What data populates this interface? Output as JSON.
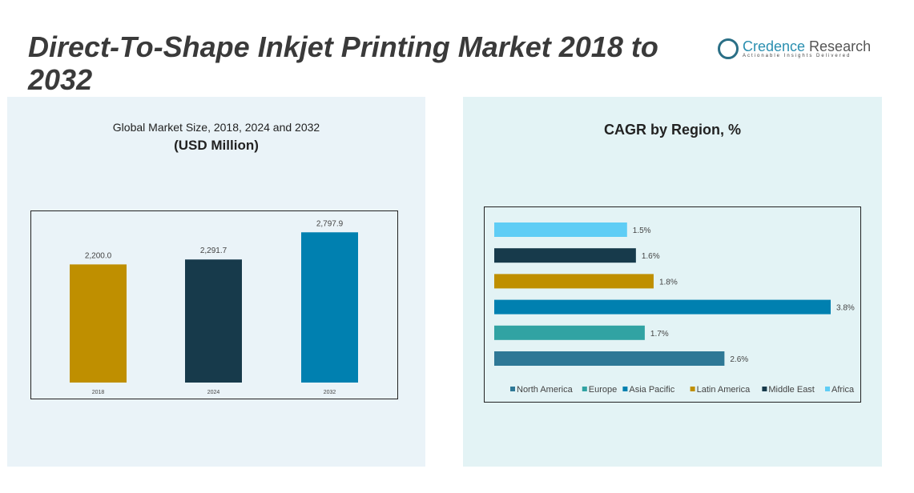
{
  "title": "Direct-To-Shape Inkjet Printing Market 2018 to 2032",
  "logo": {
    "name_a": "Credence",
    "name_b": " Research",
    "tagline": "Actionable Insights Delivered"
  },
  "chart_data": [
    {
      "type": "bar",
      "title": "Global Market Size, 2018, 2024 and 2032",
      "subtitle": "(USD Million)",
      "categories": [
        "2018",
        "2024",
        "2032"
      ],
      "values": [
        2200.0,
        2291.7,
        2797.9
      ],
      "labels": [
        "2,200.0",
        "2,291.7",
        "2,797.9"
      ],
      "colors": [
        "#bf8f00",
        "#173a4b",
        "#0080b0"
      ],
      "ylim": [
        0,
        3100
      ],
      "grid": false
    },
    {
      "type": "bar",
      "orientation": "horizontal",
      "title": "CAGR by Region, %",
      "categories": [
        "Africa",
        "Middle East",
        "Latin America",
        "Asia Pacific",
        "Europe",
        "North America"
      ],
      "values": [
        1.5,
        1.6,
        1.8,
        3.8,
        1.7,
        2.6
      ],
      "labels": [
        "1.5%",
        "1.6%",
        "1.8%",
        "3.8%",
        "1.7%",
        "2.6%"
      ],
      "colors": [
        "#5fcdf5",
        "#173a4b",
        "#bf8f00",
        "#0080b0",
        "#31a3a3",
        "#2e7896"
      ],
      "legend": {
        "position": "bottom",
        "items": [
          "North America",
          "Europe",
          "Asia Pacific",
          "Latin America",
          "Middle East",
          "Africa"
        ],
        "colors": [
          "#2e7896",
          "#31a3a3",
          "#0080b0",
          "#bf8f00",
          "#173a4b",
          "#5fcdf5"
        ]
      },
      "xlim": [
        0,
        3.8
      ],
      "grid": false
    }
  ]
}
